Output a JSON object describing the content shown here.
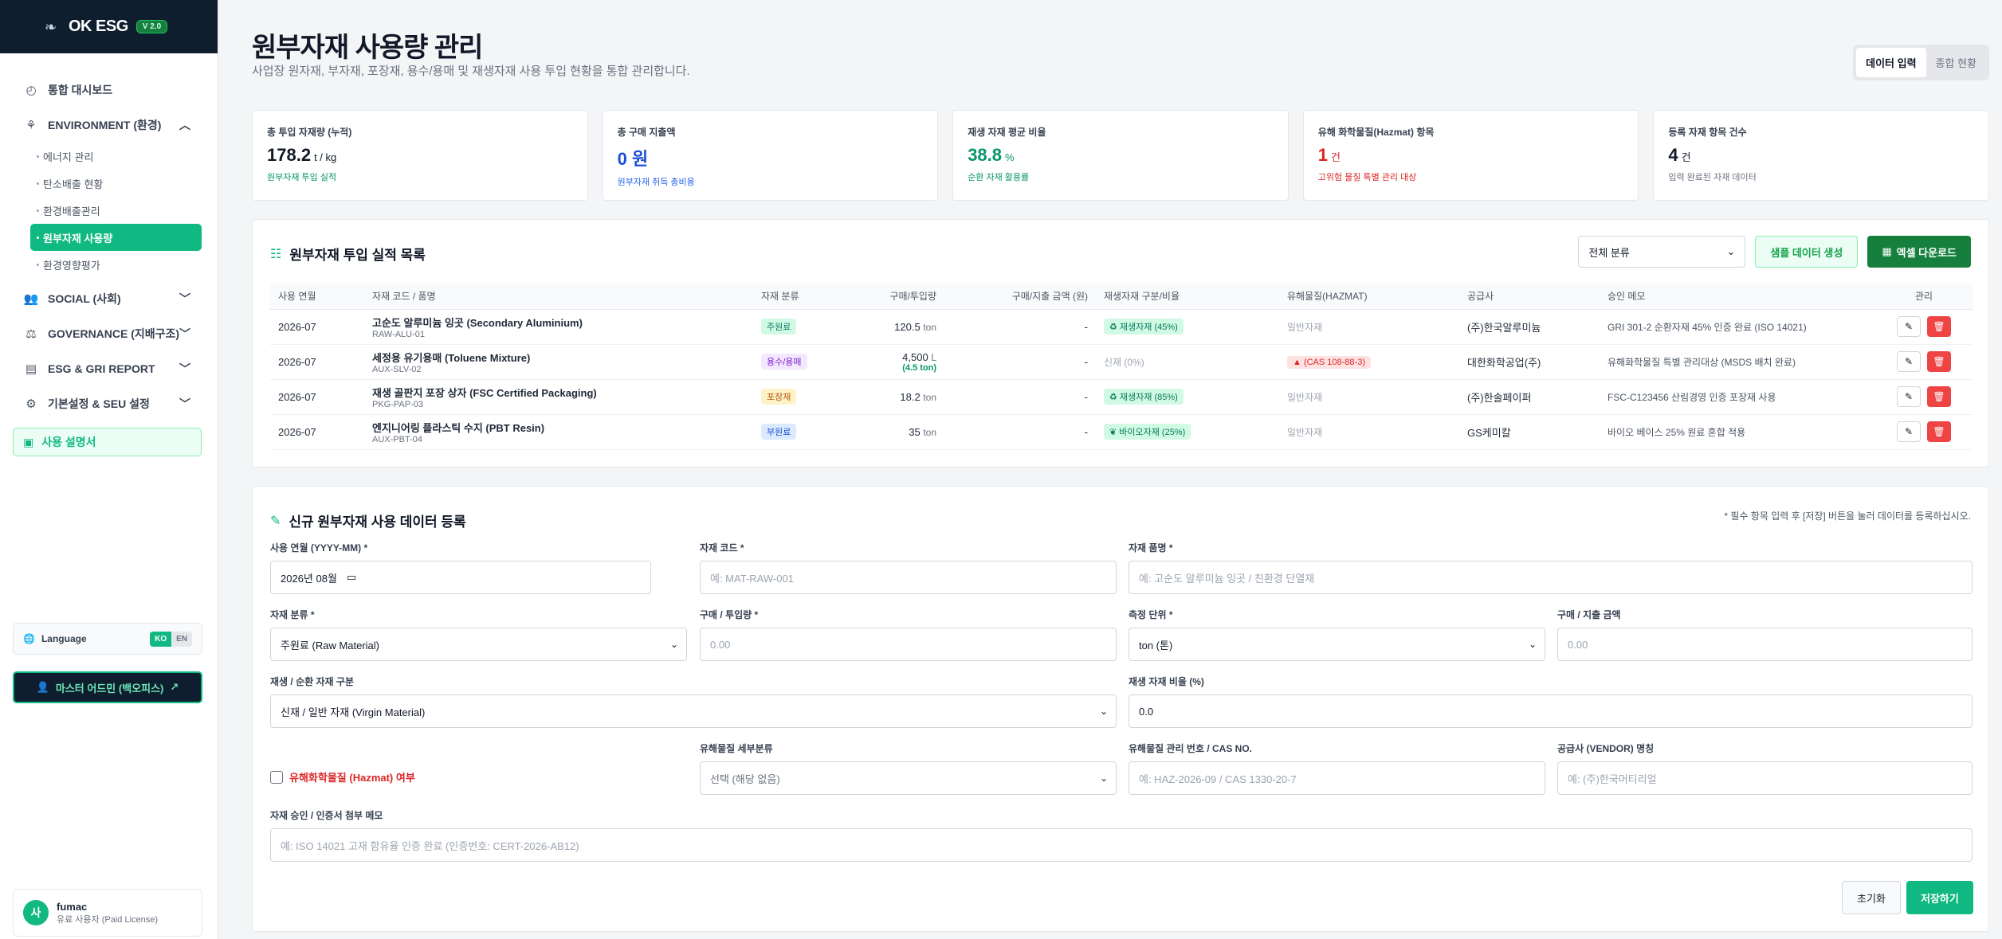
{
  "sidebar": {
    "brand": "OK ESG",
    "version": "V 2.0",
    "nav": {
      "dashboard": "통합 대시보드",
      "environment": "ENVIRONMENT (환경)",
      "env_items": [
        "에너지 관리",
        "탄소배출 현황",
        "환경배출관리",
        "원부자재 사용량",
        "환경영향평가"
      ],
      "social": "SOCIAL (사회)",
      "governance": "GOVERNANCE (지배구조)",
      "report": "ESG & GRI REPORT",
      "settings": "기본설정 & SEU 설정",
      "guide": "사용 설명서"
    },
    "language_label": "Language",
    "lang_ko": "KO",
    "lang_en": "EN",
    "admin_button": "마스터 어드민 (백오피스)",
    "user_name": "fumac",
    "user_role": "유료 사용자 (Paid License)",
    "avatar_initial": "사"
  },
  "header": {
    "title": "원부자재 사용량 관리",
    "subtitle": "사업장 원자재, 부자재, 포장재, 용수/용매 및 재생자재 사용 투입 현황을 통합 관리합니다.",
    "tab_input": "데이터 입력",
    "tab_overview": "종합 현황"
  },
  "kpis": [
    {
      "label": "총 투입 자재량 (누적)",
      "value": "178.2",
      "unit": "t / kg",
      "note": "원부자재 투입 실적",
      "color": "#111827",
      "note_color": "#059669"
    },
    {
      "label": "총 구매 지출액",
      "value": "0 원",
      "unit": "",
      "note": "원부자재 취득 총비용",
      "color": "#1d4ed8",
      "note_color": "#2563eb"
    },
    {
      "label": "재생 자재 평균 비율",
      "value": "38.8",
      "unit": "%",
      "note": "순환 자재 활용률",
      "color": "#059669",
      "note_color": "#059669"
    },
    {
      "label": "유해 화학물질(Hazmat) 항목",
      "value": "1",
      "unit": "건",
      "note": "고위험 물질 특별 관리 대상",
      "color": "#dc2626",
      "note_color": "#dc2626"
    },
    {
      "label": "등록 자재 항목 건수",
      "value": "4",
      "unit": "건",
      "note": "입력 완료된 자재 데이터",
      "color": "#111827",
      "note_color": "#6b7280"
    }
  ],
  "list": {
    "title": "원부자재 투입 실적 목록",
    "filter_value": "전체 분류",
    "sample_button": "샘플 데이터 생성",
    "excel_button": "엑셀 다운로드",
    "columns": [
      "사용 연월",
      "자재 코드 / 품명",
      "자재 분류",
      "구매/투입량",
      "구매/지출 금액 (원)",
      "재생자재 구분/비율",
      "유해물질(HAZMAT)",
      "공급사",
      "승인 메모",
      "관리"
    ],
    "rows": [
      {
        "month": "2026-07",
        "name": "고순도 알루미늄 잉곳 (Secondary Aluminium)",
        "code": "RAW-ALU-01",
        "category": "주원료",
        "cat_class": "t-main",
        "qty": "120.5",
        "unit": "ton",
        "sub_qty": "",
        "amount": "-",
        "recycle": "♻ 재생자재 (45%)",
        "recycle_tag": true,
        "hazmat": "일반자재",
        "hazmat_tag": false,
        "supplier": "(주)한국알루미늄",
        "memo": "GRI 301-2 순환자재 45% 인증 완료 (ISO 14021)"
      },
      {
        "month": "2026-07",
        "name": "세정용 유기용매 (Toluene Mixture)",
        "code": "AUX-SLV-02",
        "category": "용수/용매",
        "cat_class": "t-sol",
        "qty": "4,500",
        "unit": "L",
        "sub_qty": "(4.5 ton)",
        "amount": "-",
        "recycle": "신재 (0%)",
        "recycle_tag": false,
        "hazmat": "▲ (CAS 108-88-3)",
        "hazmat_tag": true,
        "supplier": "대한화학공업(주)",
        "memo": "유해화학물질 특별 관리대상 (MSDS 배치 완료)"
      },
      {
        "month": "2026-07",
        "name": "재생 골판지 포장 상자 (FSC Certified Packaging)",
        "code": "PKG-PAP-03",
        "category": "포장재",
        "cat_class": "t-pack",
        "qty": "18.2",
        "unit": "ton",
        "sub_qty": "",
        "amount": "-",
        "recycle": "♻ 재생자재 (85%)",
        "recycle_tag": true,
        "hazmat": "일반자재",
        "hazmat_tag": false,
        "supplier": "(주)한솔페이퍼",
        "memo": "FSC-C123456 산림경영 인증 포장재 사용"
      },
      {
        "month": "2026-07",
        "name": "엔지니어링 플라스틱 수지 (PBT Resin)",
        "code": "AUX-PBT-04",
        "category": "부원료",
        "cat_class": "t-sub",
        "qty": "35",
        "unit": "ton",
        "sub_qty": "",
        "amount": "-",
        "recycle": "❦ 바이오자재 (25%)",
        "recycle_tag": true,
        "hazmat": "일반자재",
        "hazmat_tag": false,
        "supplier": "GS케미칼",
        "memo": "바이오 베이스 25% 원료 혼합 적용"
      }
    ]
  },
  "form": {
    "title": "신규 원부자재 사용 데이터 등록",
    "hint": "* 필수 항목 입력 후 [저장] 버튼을 눌러 데이터를 등록하십시오.",
    "month_label": "사용 연월 (YYYY-MM) *",
    "month_value": "2026년 08월",
    "code_label": "자재 코드 *",
    "code_placeholder": "예: MAT-RAW-001",
    "name_label": "자재 품명 *",
    "name_placeholder": "예: 고순도 알루미늄 잉곳 / 친환경 단열재",
    "category_label": "자재 분류 *",
    "category_value": "주원료 (Raw Material)",
    "qty_label": "구매 / 투입량 *",
    "qty_placeholder": "0.00",
    "unit_label": "측정 단위 *",
    "unit_value": "ton (톤)",
    "amount_label": "구매 / 지출 금액",
    "amount_placeholder": "0.00",
    "recycle_type_label": "재생 / 순환 자재 구분",
    "recycle_type_value": "신재 / 일반 자재 (Virgin Material)",
    "recycle_ratio_label": "재생 자재 비율 (%)",
    "recycle_ratio_value": "0.0",
    "hazmat_check_label": "유해화학물질 (Hazmat) 여부",
    "hazmat_class_label": "유해물질 세부분류",
    "hazmat_class_value": "선택 (해당 없음)",
    "hazmat_no_label": "유해물질 관리 번호 / CAS NO.",
    "hazmat_no_placeholder": "예: HAZ-2026-09 / CAS 1330-20-7",
    "vendor_label": "공급사 (VENDOR) 명칭",
    "vendor_placeholder": "예: (주)한국머티리얼",
    "memo_label": "자재 승인 / 인증서 첨부 메모",
    "memo_placeholder": "예: ISO 14021 고재 함유율 인증 완료 (인증번호: CERT-2026-AB12)",
    "reset_button": "초기화",
    "save_button": "저장하기"
  }
}
